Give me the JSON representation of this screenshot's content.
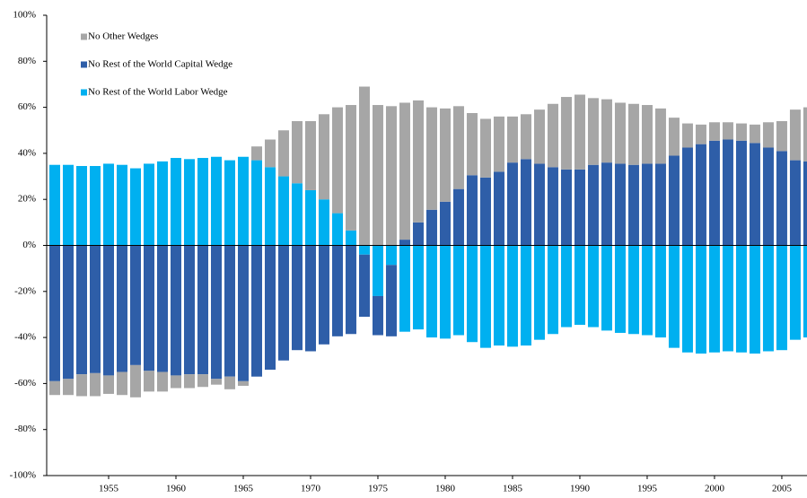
{
  "chart_data": {
    "type": "bar",
    "stacked": true,
    "x": [
      1951,
      1952,
      1953,
      1954,
      1955,
      1956,
      1957,
      1958,
      1959,
      1960,
      1961,
      1962,
      1963,
      1964,
      1965,
      1966,
      1967,
      1968,
      1969,
      1970,
      1971,
      1972,
      1973,
      1974,
      1975,
      1976,
      1977,
      1978,
      1979,
      1980,
      1981,
      1982,
      1983,
      1984,
      1985,
      1986,
      1987,
      1988,
      1989,
      1990,
      1991,
      1992,
      1993,
      1994,
      1995,
      1996,
      1997,
      1998,
      1999,
      2000,
      2001,
      2002,
      2003,
      2004,
      2005,
      2006,
      2007
    ],
    "series": [
      {
        "name": "No Rest of the World Labor Wedge",
        "color": "#00b0f0",
        "values": [
          35,
          35,
          34.5,
          34.5,
          35.5,
          35,
          33.5,
          35.5,
          36.5,
          38,
          37.5,
          38,
          38.5,
          37,
          38.5,
          37,
          34,
          30,
          27,
          24,
          20,
          14,
          6.5,
          -4,
          -22,
          -8.5,
          -37.5,
          -36.5,
          -40,
          -40.5,
          -39,
          -42,
          -44.5,
          -43.5,
          -44,
          -43.5,
          -41,
          -38.5,
          -35.5,
          -34.5,
          -35.5,
          -37,
          -38,
          -38.5,
          -39,
          -40,
          -44.5,
          -46.5,
          -47,
          -46.5,
          -46,
          -46.5,
          -47,
          -46,
          -45.5,
          -41,
          -40
        ]
      },
      {
        "name": "No Rest of the World Capital Wedge",
        "color": "#2e5ea8",
        "values": [
          -59,
          -58,
          -56,
          -55.5,
          -56.5,
          -55,
          -52,
          -54.5,
          -55,
          -56.5,
          -56,
          -56,
          -58,
          -57,
          -59,
          -57,
          -54,
          -50,
          -45.5,
          -46,
          -43,
          -39.5,
          -38.5,
          -27,
          -17,
          -31,
          2.5,
          10,
          15.5,
          19,
          24.5,
          30.5,
          29.5,
          32,
          36,
          37.5,
          35.5,
          34,
          33,
          33,
          35,
          36,
          35.5,
          35,
          35.5,
          35.5,
          39,
          42.5,
          44,
          45.5,
          46,
          45.5,
          44.5,
          42.5,
          41,
          37,
          36.5
        ]
      },
      {
        "name": "No Other Wedges",
        "color": "#a6a6a6",
        "values": [
          -6,
          -7,
          -9.5,
          -10,
          -8,
          -10,
          -14,
          -9,
          -8.5,
          -5.5,
          -6,
          -5.5,
          -2.5,
          -5.5,
          -2,
          6,
          12,
          20,
          27,
          30,
          37,
          46,
          54.5,
          69,
          61,
          60.5,
          59.5,
          53,
          44.5,
          40.5,
          36,
          27,
          25.5,
          24,
          20,
          19.5,
          23.5,
          27.5,
          31.5,
          32.5,
          29,
          27.5,
          26.5,
          26.5,
          25.5,
          24,
          16.5,
          10.5,
          8.5,
          8,
          7.5,
          7.5,
          8,
          11,
          13,
          22,
          23.5
        ]
      }
    ],
    "legend_order": [
      2,
      1,
      0
    ],
    "xlim": [
      1950.4,
      2006.87
    ],
    "xticks": [
      1955,
      1960,
      1965,
      1970,
      1975,
      1980,
      1985,
      1990,
      1995,
      2000,
      2005
    ],
    "ylim": [
      -100,
      100
    ],
    "yticks": [
      {
        "value": -100,
        "label": "-100%"
      },
      {
        "value": -80,
        "label": "-80%"
      },
      {
        "value": -60,
        "label": "-60%"
      },
      {
        "value": -40,
        "label": "-40%"
      },
      {
        "value": -20,
        "label": "-20%"
      },
      {
        "value": 0,
        "label": "0%"
      },
      {
        "value": 20,
        "label": "20%"
      },
      {
        "value": 40,
        "label": "40%"
      },
      {
        "value": 60,
        "label": "60%"
      },
      {
        "value": 80,
        "label": "80%"
      },
      {
        "value": 100,
        "label": "100%"
      }
    ],
    "grid": false,
    "legend": "upper left"
  }
}
